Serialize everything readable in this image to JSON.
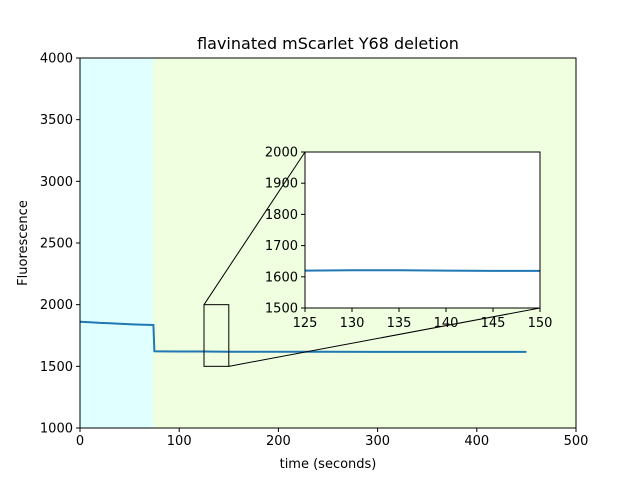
{
  "chart_data": {
    "type": "line",
    "title": "flavinated mScarlet Y68 deletion",
    "xlabel": "time (seconds)",
    "ylabel": "Fluorescence",
    "xlim": [
      0,
      500
    ],
    "ylim": [
      1000,
      4000
    ],
    "xticks": [
      "0",
      "100",
      "200",
      "300",
      "400",
      "500"
    ],
    "yticks": [
      "1000",
      "1500",
      "2000",
      "2500",
      "3000",
      "3500",
      "4000"
    ],
    "grid": false,
    "shaded_regions": [
      {
        "x": [
          0,
          74
        ],
        "color": "#e0ffff"
      },
      {
        "x": [
          74,
          500
        ],
        "color": "#f0ffe0"
      }
    ],
    "series": [
      {
        "color": "#1f77b4",
        "x": [
          0,
          10,
          20,
          30,
          40,
          50,
          60,
          70,
          74,
          75,
          80,
          100,
          125,
          150,
          200,
          250,
          300,
          350,
          400,
          450
        ],
        "y": [
          1862,
          1858,
          1852,
          1850,
          1845,
          1842,
          1838,
          1836,
          1835,
          1622,
          1621,
          1620,
          1620,
          1619,
          1618,
          1618,
          1617,
          1617,
          1617,
          1617
        ]
      }
    ],
    "inset": {
      "xlim": [
        125,
        150
      ],
      "ylim": [
        1500,
        2000
      ],
      "xticks": [
        "125",
        "130",
        "135",
        "140",
        "145",
        "150"
      ],
      "yticks": [
        "1500",
        "1600",
        "1700",
        "1800",
        "1900",
        "2000"
      ],
      "zoom_box": {
        "x": [
          125,
          150
        ],
        "y": [
          1500,
          2000
        ]
      },
      "series": [
        {
          "color": "#1f77b4",
          "x": [
            125,
            130,
            135,
            140,
            145,
            150
          ],
          "y": [
            1620,
            1621,
            1621,
            1620,
            1619,
            1619
          ]
        }
      ]
    }
  }
}
